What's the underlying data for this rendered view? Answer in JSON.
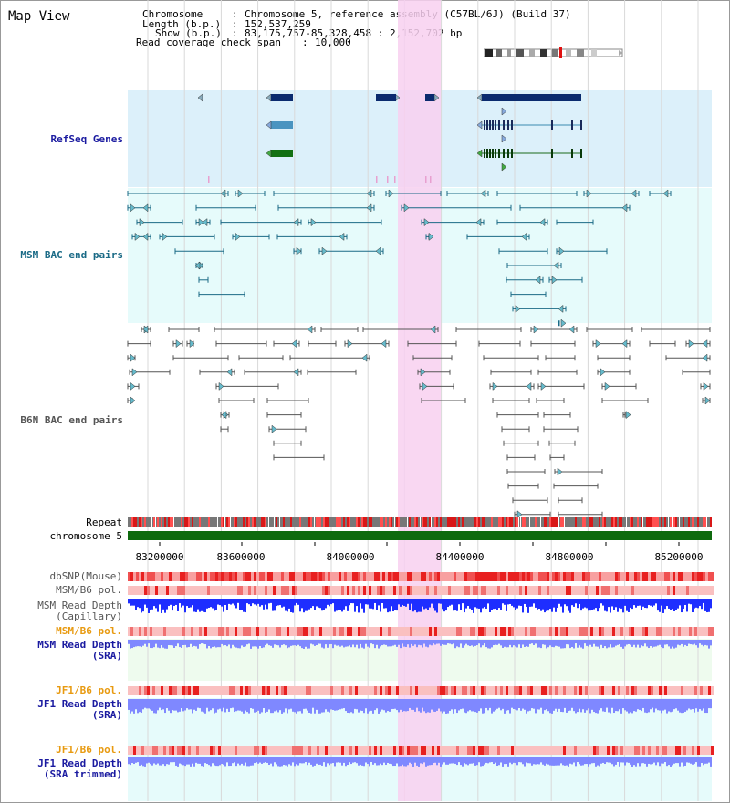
{
  "title": "Map View",
  "header": {
    "chromosome_label": "Chromosome",
    "chromosome_value": "Chromosome 5, reference assembly (C57BL/6J) (Build 37)",
    "length_label": "Length (b.p.)",
    "length_value": "152,537,259",
    "show_label": "Show (b.p.)",
    "show_value": "83,175,757-85,328,458 : 2,152,702 bp",
    "coverage_label": "Read coverage check span",
    "coverage_value": "10,000"
  },
  "tracks": {
    "refseq": "RefSeq Genes",
    "msm_bac": "MSM BAC end pairs",
    "b6n_bac": "B6N BAC end pairs",
    "repeat": "Repeat",
    "chromosome": "chromosome 5",
    "dbsnp": "dbSNP(Mouse)",
    "msm_b6_pol1": "MSM/B6 pol.",
    "msm_depth_cap_1": "MSM Read Depth",
    "msm_depth_cap_2": "(Capillary)",
    "msm_b6_pol2": "MSM/B6 pol.",
    "msm_depth_sra_1": "MSM Read Depth",
    "msm_depth_sra_2": "(SRA)",
    "jf1_b6_pol1": "JF1/B6 pol.",
    "jf1_depth_1": "JF1 Read Depth",
    "jf1_depth_2": "(SRA)",
    "jf1_b6_pol2": "JF1/B6 pol.",
    "jf1_trim_1": "JF1 Read Depth",
    "jf1_trim_2": "(SRA trimmed)"
  },
  "axis": {
    "ticks": [
      "83200000",
      "83600000",
      "84000000",
      "84400000",
      "84800000",
      "85200000"
    ]
  },
  "colors": {
    "gene_dark": "#0a2a6e",
    "gene_mid": "#4a94c0",
    "gene_green": "#127012",
    "highlight": "#f8d0f0",
    "msm_track": "#1a6a86",
    "b6n_track": "#555555",
    "depth_blue": "#1e2eff",
    "depth_light": "#7f88ff",
    "chromosome_bar": "#0e6a0e"
  }
}
